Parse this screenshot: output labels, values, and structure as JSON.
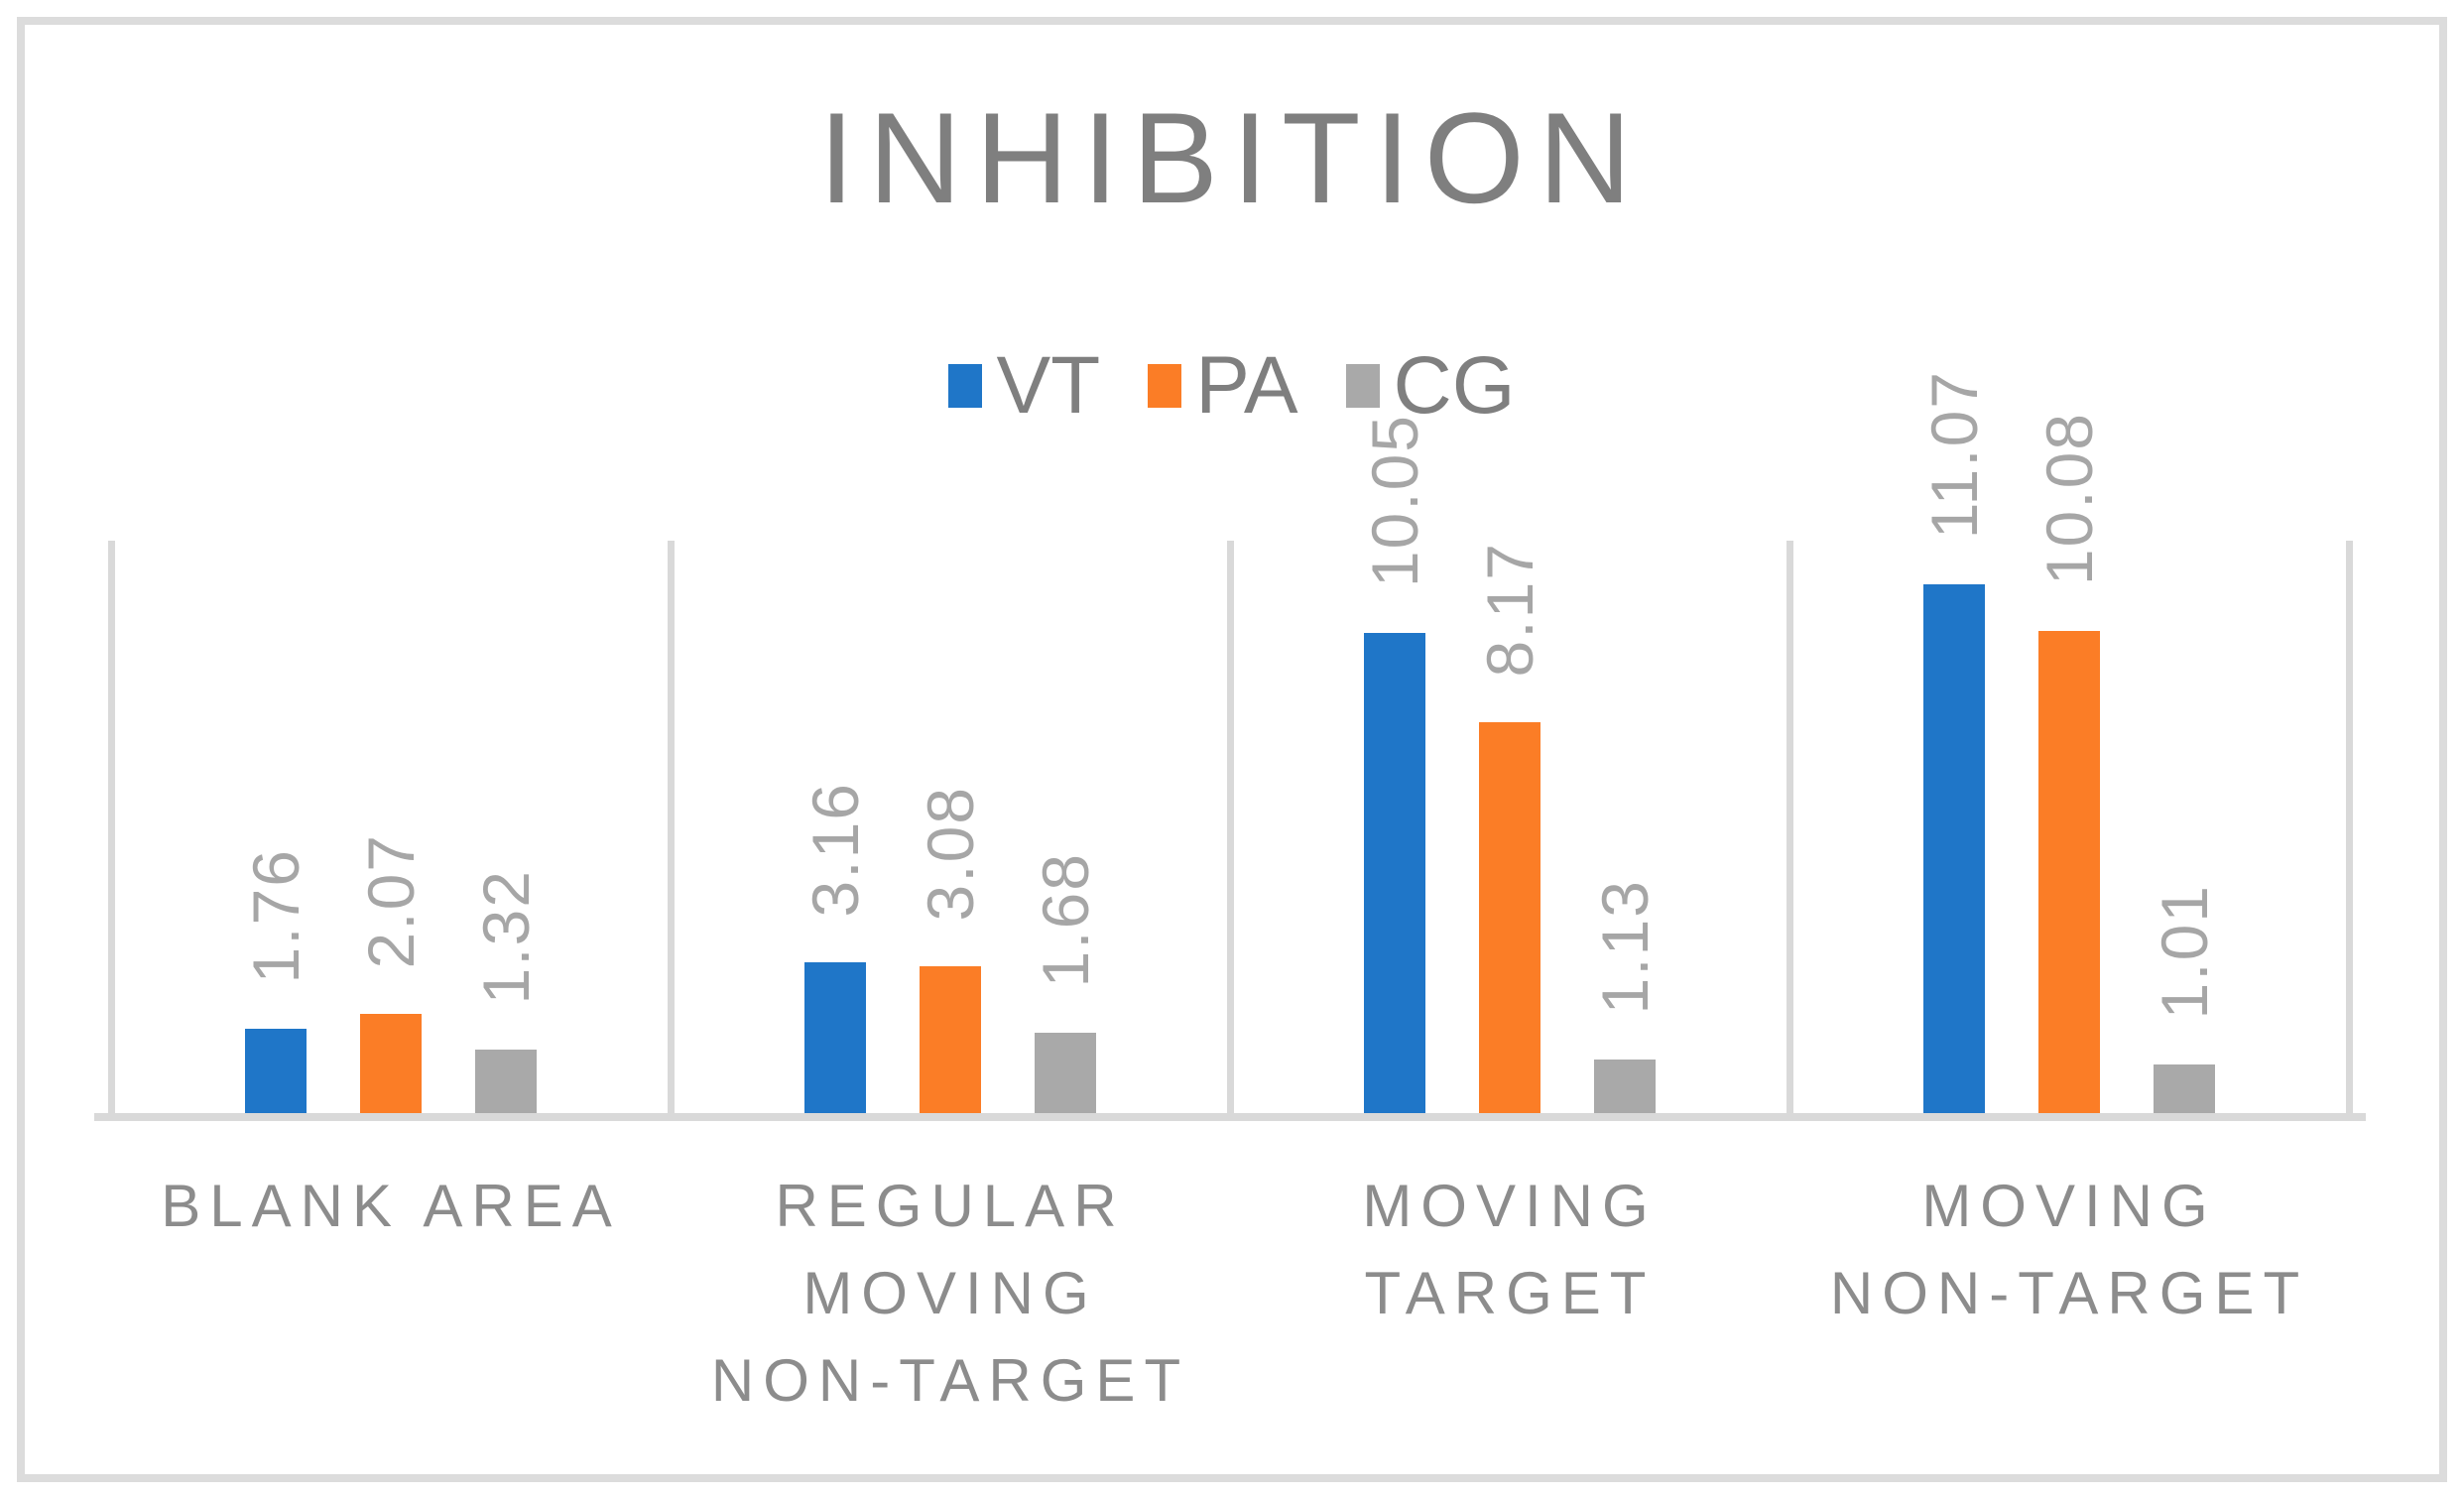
{
  "title": "INHIBITION",
  "colors": {
    "title_text": "#7F7F7F",
    "legend_text": "#7F7F7F",
    "value_label_text": "#A6A6A6",
    "category_text": "#8C8C8C",
    "axis_line": "#D9D9D9",
    "frame_border": "#DCDCDC",
    "vt_blue": "#1F76C8",
    "pa_orange": "#FB7D26",
    "cg_gray": "#A9A9A9"
  },
  "chart_data": {
    "type": "bar",
    "title": "INHIBITION",
    "categories": [
      "BLANK AREA",
      "REGULAR MOVING NON-TARGET",
      "MOVING TARGET",
      "MOVING NON-TARGET"
    ],
    "categories_display": [
      "BLANK AREA",
      "REGULAR\nMOVING\nNON-TARGET",
      "MOVING\nTARGET",
      "MOVING\nNON-TARGET"
    ],
    "series": [
      {
        "name": "VT",
        "color": "#1F76C8",
        "values": [
          1.76,
          3.16,
          10.05,
          11.07
        ]
      },
      {
        "name": "PA",
        "color": "#FB7D26",
        "values": [
          2.07,
          3.08,
          8.17,
          10.08
        ]
      },
      {
        "name": "CG",
        "color": "#A9A9A9",
        "values": [
          1.32,
          1.68,
          1.13,
          1.01
        ]
      }
    ],
    "data_labels": [
      "1.76",
      "2.07",
      "1.32",
      "3.16",
      "3.08",
      "1.68",
      "10.05",
      "8.17",
      "1.13",
      "11.07",
      "10.08",
      "1.01"
    ],
    "ylim": [
      0,
      12
    ],
    "xlabel": "",
    "ylabel": "",
    "legend_position": "top-center",
    "grid": {
      "vertical_category_separators": true,
      "horizontal_gridlines": false,
      "y_axis_ticks_visible": false
    },
    "data_label_rotation": -90
  }
}
